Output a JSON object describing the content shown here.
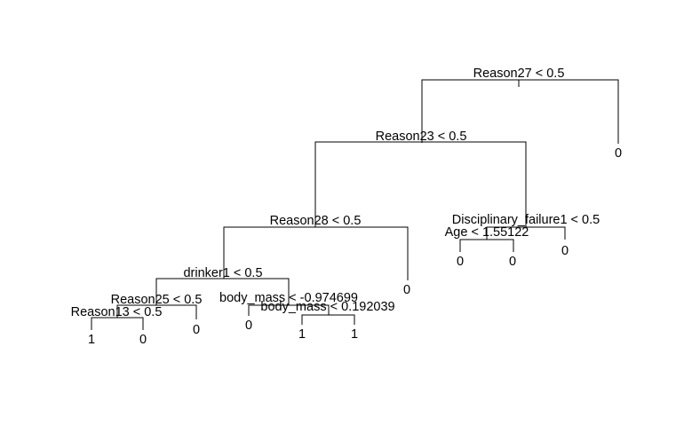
{
  "tree": {
    "root_split": "Reason27 < 0.5",
    "split_reason23": "Reason23 < 0.5",
    "split_reason28": "Reason28 < 0.5",
    "split_disciplinary": "Disciplinary_failure1 < 0.5",
    "split_age": "Age < 1.55122",
    "split_drinker": "drinker1 < 0.5",
    "split_reason25": "Reason25 < 0.5",
    "split_reason13": "Reason13 < 0.5",
    "split_body_mass_1": "body_mass < -0.974699",
    "split_body_mass_2": "body_mass < 0.192039",
    "leaves": {
      "reason13_left": "1",
      "reason13_right": "0",
      "reason25_right": "0",
      "body_mass_1_left": "0",
      "body_mass_2_left": "1",
      "body_mass_2_right": "1",
      "reason28_right": "0",
      "age_left": "0",
      "age_right": "0",
      "disciplinary_right": "0",
      "root_right": "0"
    }
  }
}
